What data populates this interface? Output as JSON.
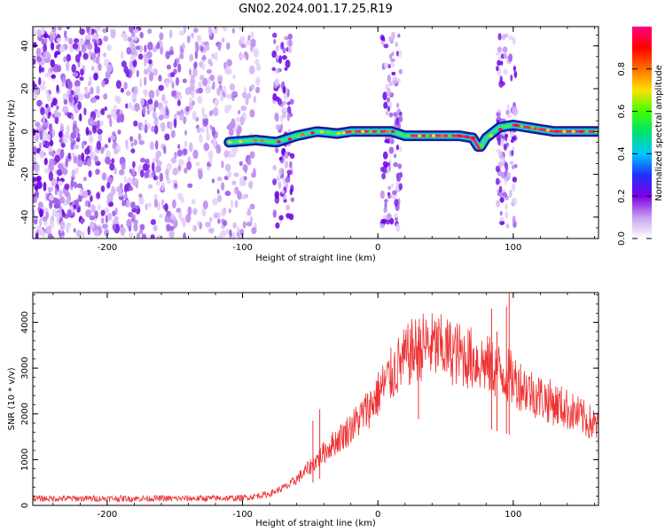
{
  "title": "GN02.2024.001.17.25.R19",
  "chart_data": [
    {
      "type": "heatmap",
      "name": "spectrogram",
      "xlabel": "Height of straight line (km)",
      "ylabel": "Frequency (Hz)",
      "xlim": [
        -255,
        163
      ],
      "ylim": [
        -50,
        49
      ],
      "x_ticks": [
        -200,
        -100,
        0,
        100
      ],
      "y_ticks": [
        -40,
        -20,
        0,
        20,
        40
      ],
      "colorbar": {
        "label": "Normalized spectral amplitude",
        "range": [
          0.0,
          1.0
        ],
        "ticks": [
          0.0,
          0.2,
          0.4,
          0.6,
          0.8
        ],
        "colormap": [
          "#ffffff",
          "#c8a0f0",
          "#7b00e6",
          "#2030ff",
          "#00c8ff",
          "#00e070",
          "#40ff00",
          "#ffe000",
          "#ff7000",
          "#ff0000",
          "#ff0080"
        ]
      },
      "noise_region_x": [
        -255,
        -88
      ],
      "signal_track": {
        "x_start": -110,
        "x_end": 163,
        "frequency_points": [
          [
            -110,
            -5
          ],
          [
            -90,
            -4
          ],
          [
            -75,
            -5
          ],
          [
            -60,
            -2
          ],
          [
            -45,
            0
          ],
          [
            -30,
            -1
          ],
          [
            -20,
            0
          ],
          [
            -10,
            0
          ],
          [
            0,
            0
          ],
          [
            10,
            0
          ],
          [
            20,
            -2
          ],
          [
            40,
            -2
          ],
          [
            60,
            -2
          ],
          [
            70,
            -3
          ],
          [
            75,
            -8
          ],
          [
            80,
            -3
          ],
          [
            90,
            2
          ],
          [
            100,
            3
          ],
          [
            110,
            2
          ],
          [
            130,
            0
          ],
          [
            163,
            0
          ]
        ],
        "high_amplitude_segments": [
          [
            -25,
            5
          ],
          [
            25,
            75
          ],
          [
            100,
            163
          ]
        ]
      },
      "broadband_bursts_x": [
        -70,
        10,
        95
      ]
    },
    {
      "type": "line",
      "name": "snr",
      "xlabel": "Height of straight line (km)",
      "ylabel": "SNR (10 * v/v)",
      "xlim": [
        -255,
        163
      ],
      "ylim": [
        0,
        4650
      ],
      "x_ticks": [
        -200,
        -100,
        0,
        100
      ],
      "y_ticks": [
        0,
        1000,
        2000,
        3000,
        4000
      ],
      "series": [
        {
          "color": "#ee3333",
          "envelope": [
            [
              -255,
              150
            ],
            [
              -150,
              150
            ],
            [
              -100,
              160
            ],
            [
              -80,
              250
            ],
            [
              -65,
              450
            ],
            [
              -55,
              700
            ],
            [
              -45,
              1000
            ],
            [
              -35,
              1300
            ],
            [
              -25,
              1550
            ],
            [
              -15,
              1850
            ],
            [
              -5,
              2200
            ],
            [
              5,
              2650
            ],
            [
              15,
              3050
            ],
            [
              25,
              3350
            ],
            [
              35,
              3500
            ],
            [
              45,
              3450
            ],
            [
              55,
              3350
            ],
            [
              65,
              3250
            ],
            [
              75,
              3150
            ],
            [
              85,
              3000
            ],
            [
              95,
              2850
            ],
            [
              105,
              2650
            ],
            [
              115,
              2450
            ],
            [
              125,
              2300
            ],
            [
              140,
              2100
            ],
            [
              155,
              1850
            ],
            [
              163,
              1700
            ]
          ],
          "spikes": [
            [
              97,
              4650
            ],
            [
              95,
              4350
            ],
            [
              84,
              4300
            ],
            [
              -43,
              2100
            ],
            [
              -48,
              1850
            ],
            [
              88,
              3800
            ],
            [
              30,
              3900
            ]
          ]
        }
      ]
    }
  ]
}
